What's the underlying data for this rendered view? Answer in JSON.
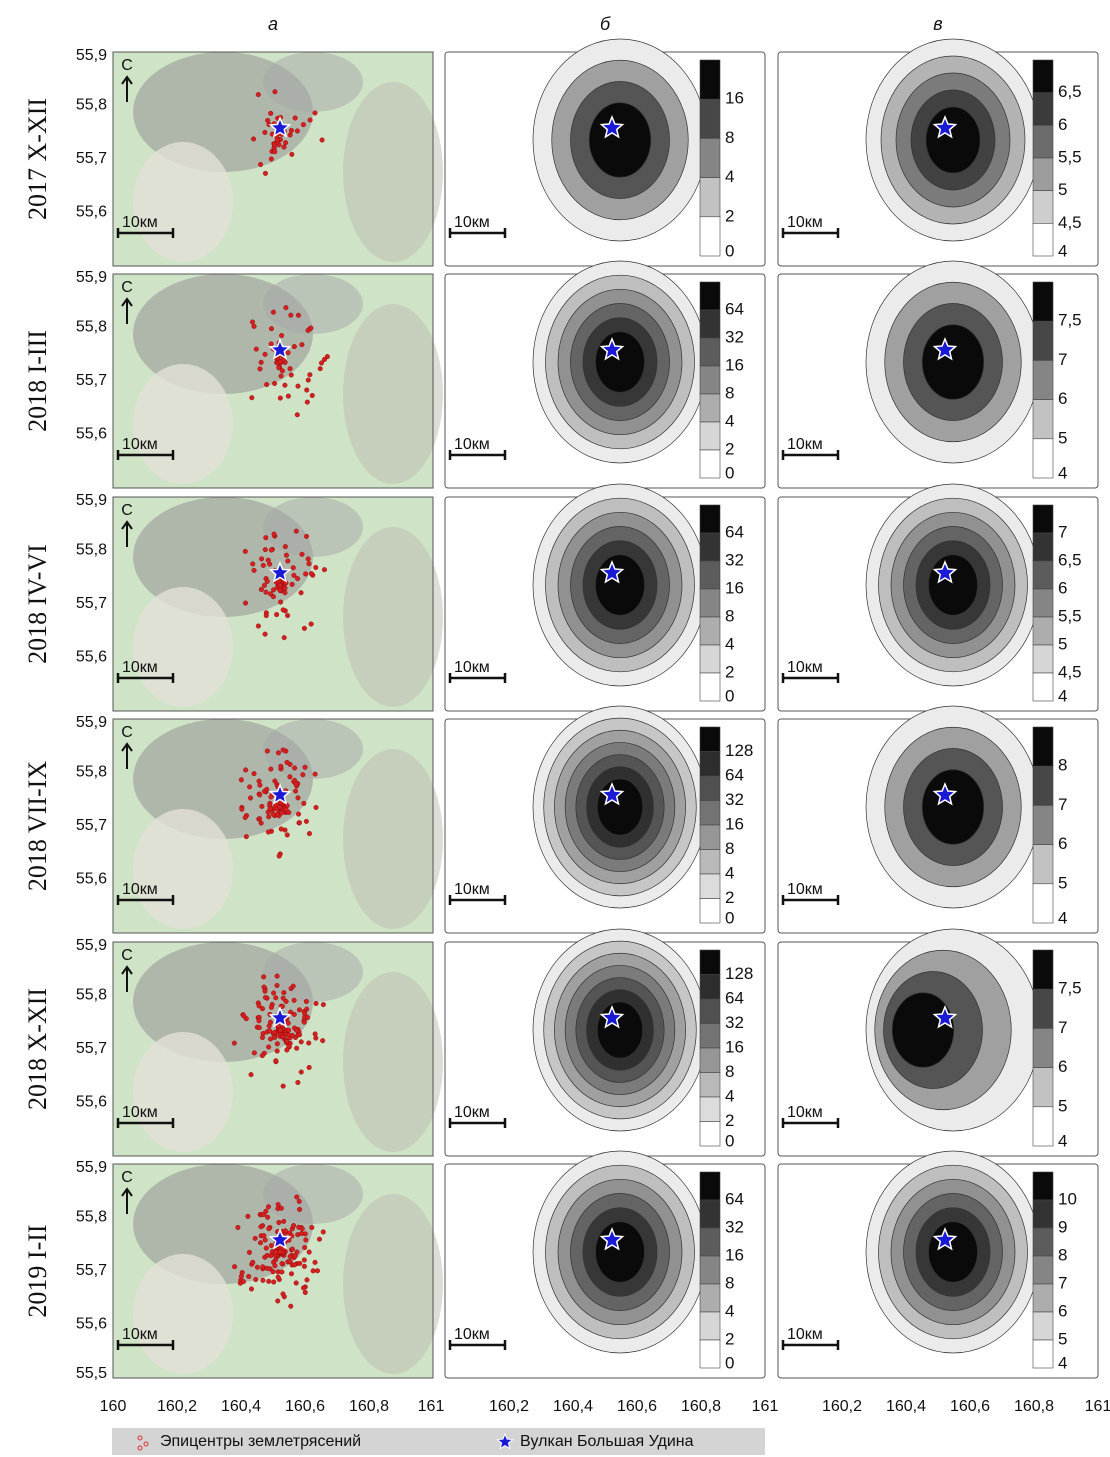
{
  "column_headers": [
    "а",
    "б",
    "в"
  ],
  "rows": [
    {
      "label": "2017 X-XII",
      "colorbar_b": [
        "16",
        "8",
        "4",
        "2",
        "0"
      ],
      "colorbar_c": [
        "6,5",
        "6",
        "5,5",
        "5",
        "4,5",
        "4"
      ]
    },
    {
      "label": "2018 I-III",
      "colorbar_b": [
        "64",
        "32",
        "16",
        "8",
        "4",
        "2",
        "0"
      ],
      "colorbar_c": [
        "7,5",
        "7",
        "6",
        "5",
        "4"
      ]
    },
    {
      "label": "2018 IV-VI",
      "colorbar_b": [
        "64",
        "32",
        "16",
        "8",
        "4",
        "2",
        "0"
      ],
      "colorbar_c": [
        "7",
        "6,5",
        "6",
        "5,5",
        "5",
        "4,5",
        "4"
      ]
    },
    {
      "label": "2018 VII-IX",
      "colorbar_b": [
        "128",
        "64",
        "32",
        "16",
        "8",
        "4",
        "2",
        "0"
      ],
      "colorbar_c": [
        "8",
        "7",
        "6",
        "5",
        "4"
      ]
    },
    {
      "label": "2018 X-XII",
      "colorbar_b": [
        "128",
        "64",
        "32",
        "16",
        "8",
        "4",
        "2",
        "0"
      ],
      "colorbar_c": [
        "7,5",
        "7",
        "6",
        "5",
        "4"
      ]
    },
    {
      "label": "2019 I-II",
      "colorbar_b": [
        "64",
        "32",
        "16",
        "8",
        "4",
        "2",
        "0"
      ],
      "colorbar_c": [
        "10",
        "9",
        "8",
        "7",
        "6",
        "5",
        "4"
      ]
    }
  ],
  "y_ticks": [
    "55,9",
    "55,8",
    "55,7",
    "55,6",
    "55,5"
  ],
  "x_ticks": [
    "160",
    "160,2",
    "160,4",
    "160,6",
    "160,8",
    "161"
  ],
  "scale_label": "10км",
  "north_label": "С",
  "legend": [
    "Эпицентры землетрясений",
    "Вулкан Большая Удина"
  ]
}
